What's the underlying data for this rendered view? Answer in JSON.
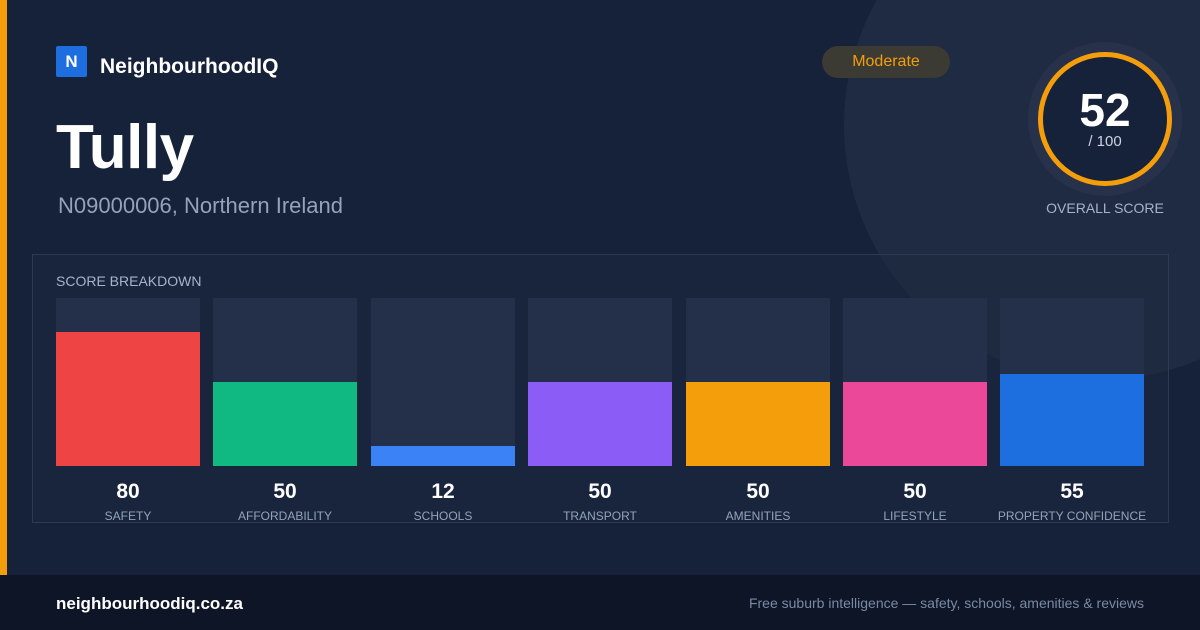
{
  "brand": {
    "logo_letter": "N",
    "name": "NeighbourhoodIQ"
  },
  "place": {
    "name": "Tully",
    "subtitle": "N09000006, Northern Ireland"
  },
  "badge": {
    "label": "Moderate",
    "color": "#f59e0b"
  },
  "overall": {
    "value": "52",
    "max_label": "/ 100",
    "caption": "OVERALL SCORE"
  },
  "breakdown": {
    "title": "SCORE BREAKDOWN",
    "items": [
      {
        "label": "SAFETY",
        "value": "80",
        "score": 80,
        "color": "#ef4444"
      },
      {
        "label": "AFFORDABILITY",
        "value": "50",
        "score": 50,
        "color": "#10b981"
      },
      {
        "label": "SCHOOLS",
        "value": "12",
        "score": 12,
        "color": "#3b82f6"
      },
      {
        "label": "TRANSPORT",
        "value": "50",
        "score": 50,
        "color": "#8b5cf6"
      },
      {
        "label": "AMENITIES",
        "value": "50",
        "score": 50,
        "color": "#f59e0b"
      },
      {
        "label": "LIFESTYLE",
        "value": "50",
        "score": 50,
        "color": "#ec4899"
      },
      {
        "label": "PROPERTY CONFIDENCE",
        "value": "55",
        "score": 55,
        "color": "#1d6fe0"
      }
    ]
  },
  "footer": {
    "domain": "neighbourhoodiq.co.za",
    "tagline": "Free suburb intelligence — safety, schools, amenities & reviews"
  }
}
